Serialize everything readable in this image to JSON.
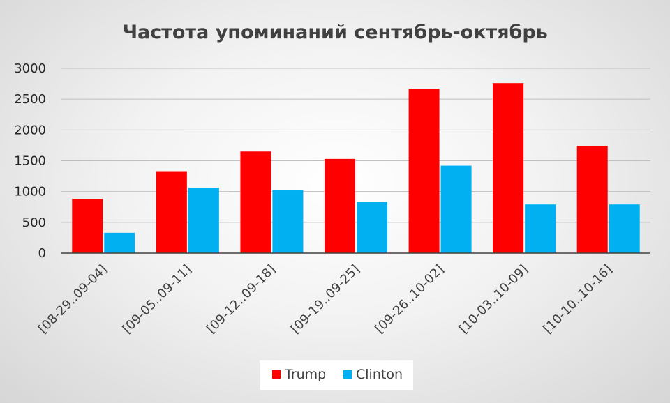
{
  "chart_data": {
    "type": "bar",
    "title": "Частота упоминаний сентябрь-октябрь",
    "categories": [
      "[08-29..09-04]",
      "[09-05..09-11]",
      "[09-12..09-18]",
      "[09-19..09-25]",
      "[09-26..10-02]",
      "[10-03..10-09]",
      "[10-10..10-16]"
    ],
    "series": [
      {
        "name": "Trump",
        "color": "#ff0000",
        "values": [
          880,
          1330,
          1650,
          1530,
          2670,
          2760,
          1740
        ]
      },
      {
        "name": "Clinton",
        "color": "#00b0f0",
        "values": [
          330,
          1060,
          1030,
          830,
          1420,
          790,
          790
        ]
      }
    ],
    "yticks": [
      "0",
      "500",
      "1000",
      "1500",
      "2000",
      "2500",
      "3000"
    ],
    "ylim": [
      0,
      3000
    ],
    "grid": true,
    "legend_position": "bottom",
    "xlabel": "",
    "ylabel": ""
  }
}
